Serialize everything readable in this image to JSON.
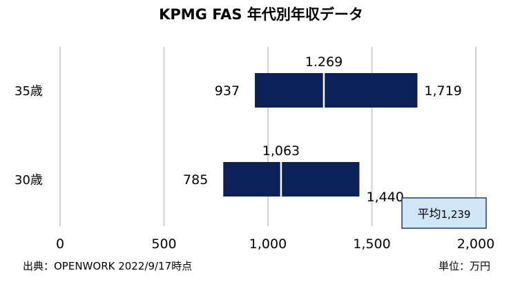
{
  "chart_data": {
    "type": "bar",
    "title": "KPMG FAS 年代別年収データ",
    "categories": [
      "35歳",
      "30歳"
    ],
    "ranges": [
      {
        "category": "35歳",
        "min": 937,
        "median": 1269,
        "max": 1719,
        "min_label": "937",
        "median_label": "1.269",
        "max_label": "1,719"
      },
      {
        "category": "30歳",
        "min": 785,
        "median": 1063,
        "max": 1440,
        "min_label": "785",
        "median_label": "1,063",
        "max_label": "1,440"
      }
    ],
    "xlim": [
      0,
      2000
    ],
    "xticks": [
      0,
      500,
      1000,
      1500,
      2000
    ],
    "xtick_labels": [
      "0",
      "500",
      "1,000",
      "1,500",
      "2,000"
    ],
    "grid": true,
    "bar_color": "#0c2157",
    "average": {
      "label": "平均",
      "value_label": "1,239",
      "value": 1239
    }
  },
  "footer": {
    "source": "出典：OPENWORK 2022/9/17時点",
    "unit": "単位：万円"
  },
  "colors": {
    "bar": "#0c2157",
    "grid": "#d0d0d0",
    "avg_fill": "#cfe6f7",
    "avg_border": "#1f3b70"
  }
}
